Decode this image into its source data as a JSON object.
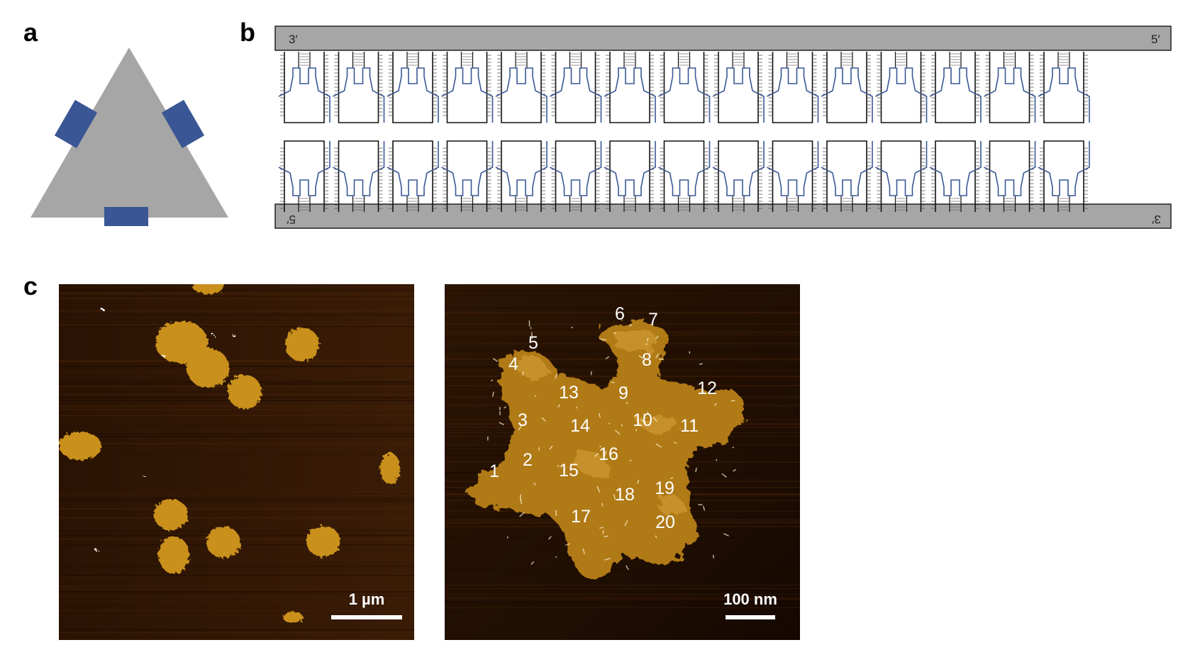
{
  "panel_labels": {
    "a": "a",
    "b": "b",
    "c": "c"
  },
  "panel_b": {
    "top_strand": {
      "left_end": "3′",
      "right_end": "5′"
    },
    "bottom_strand": {
      "left_end": "5′",
      "right_end": "3′"
    },
    "hairpin_count": 15
  },
  "panel_c": {
    "left_image": {
      "scale_bar_label": "1 µm"
    },
    "right_image": {
      "scale_bar_label": "100 nm",
      "tile_labels": [
        "1",
        "2",
        "3",
        "4",
        "5",
        "6",
        "7",
        "8",
        "9",
        "10",
        "11",
        "12",
        "13",
        "14",
        "15",
        "16",
        "17",
        "18",
        "19",
        "20"
      ]
    }
  },
  "colors": {
    "triangle_gray": "#a6a6a6",
    "accent_blue": "#3a5694",
    "afm_background": "#2b1403",
    "afm_feature": "#c9901f"
  }
}
